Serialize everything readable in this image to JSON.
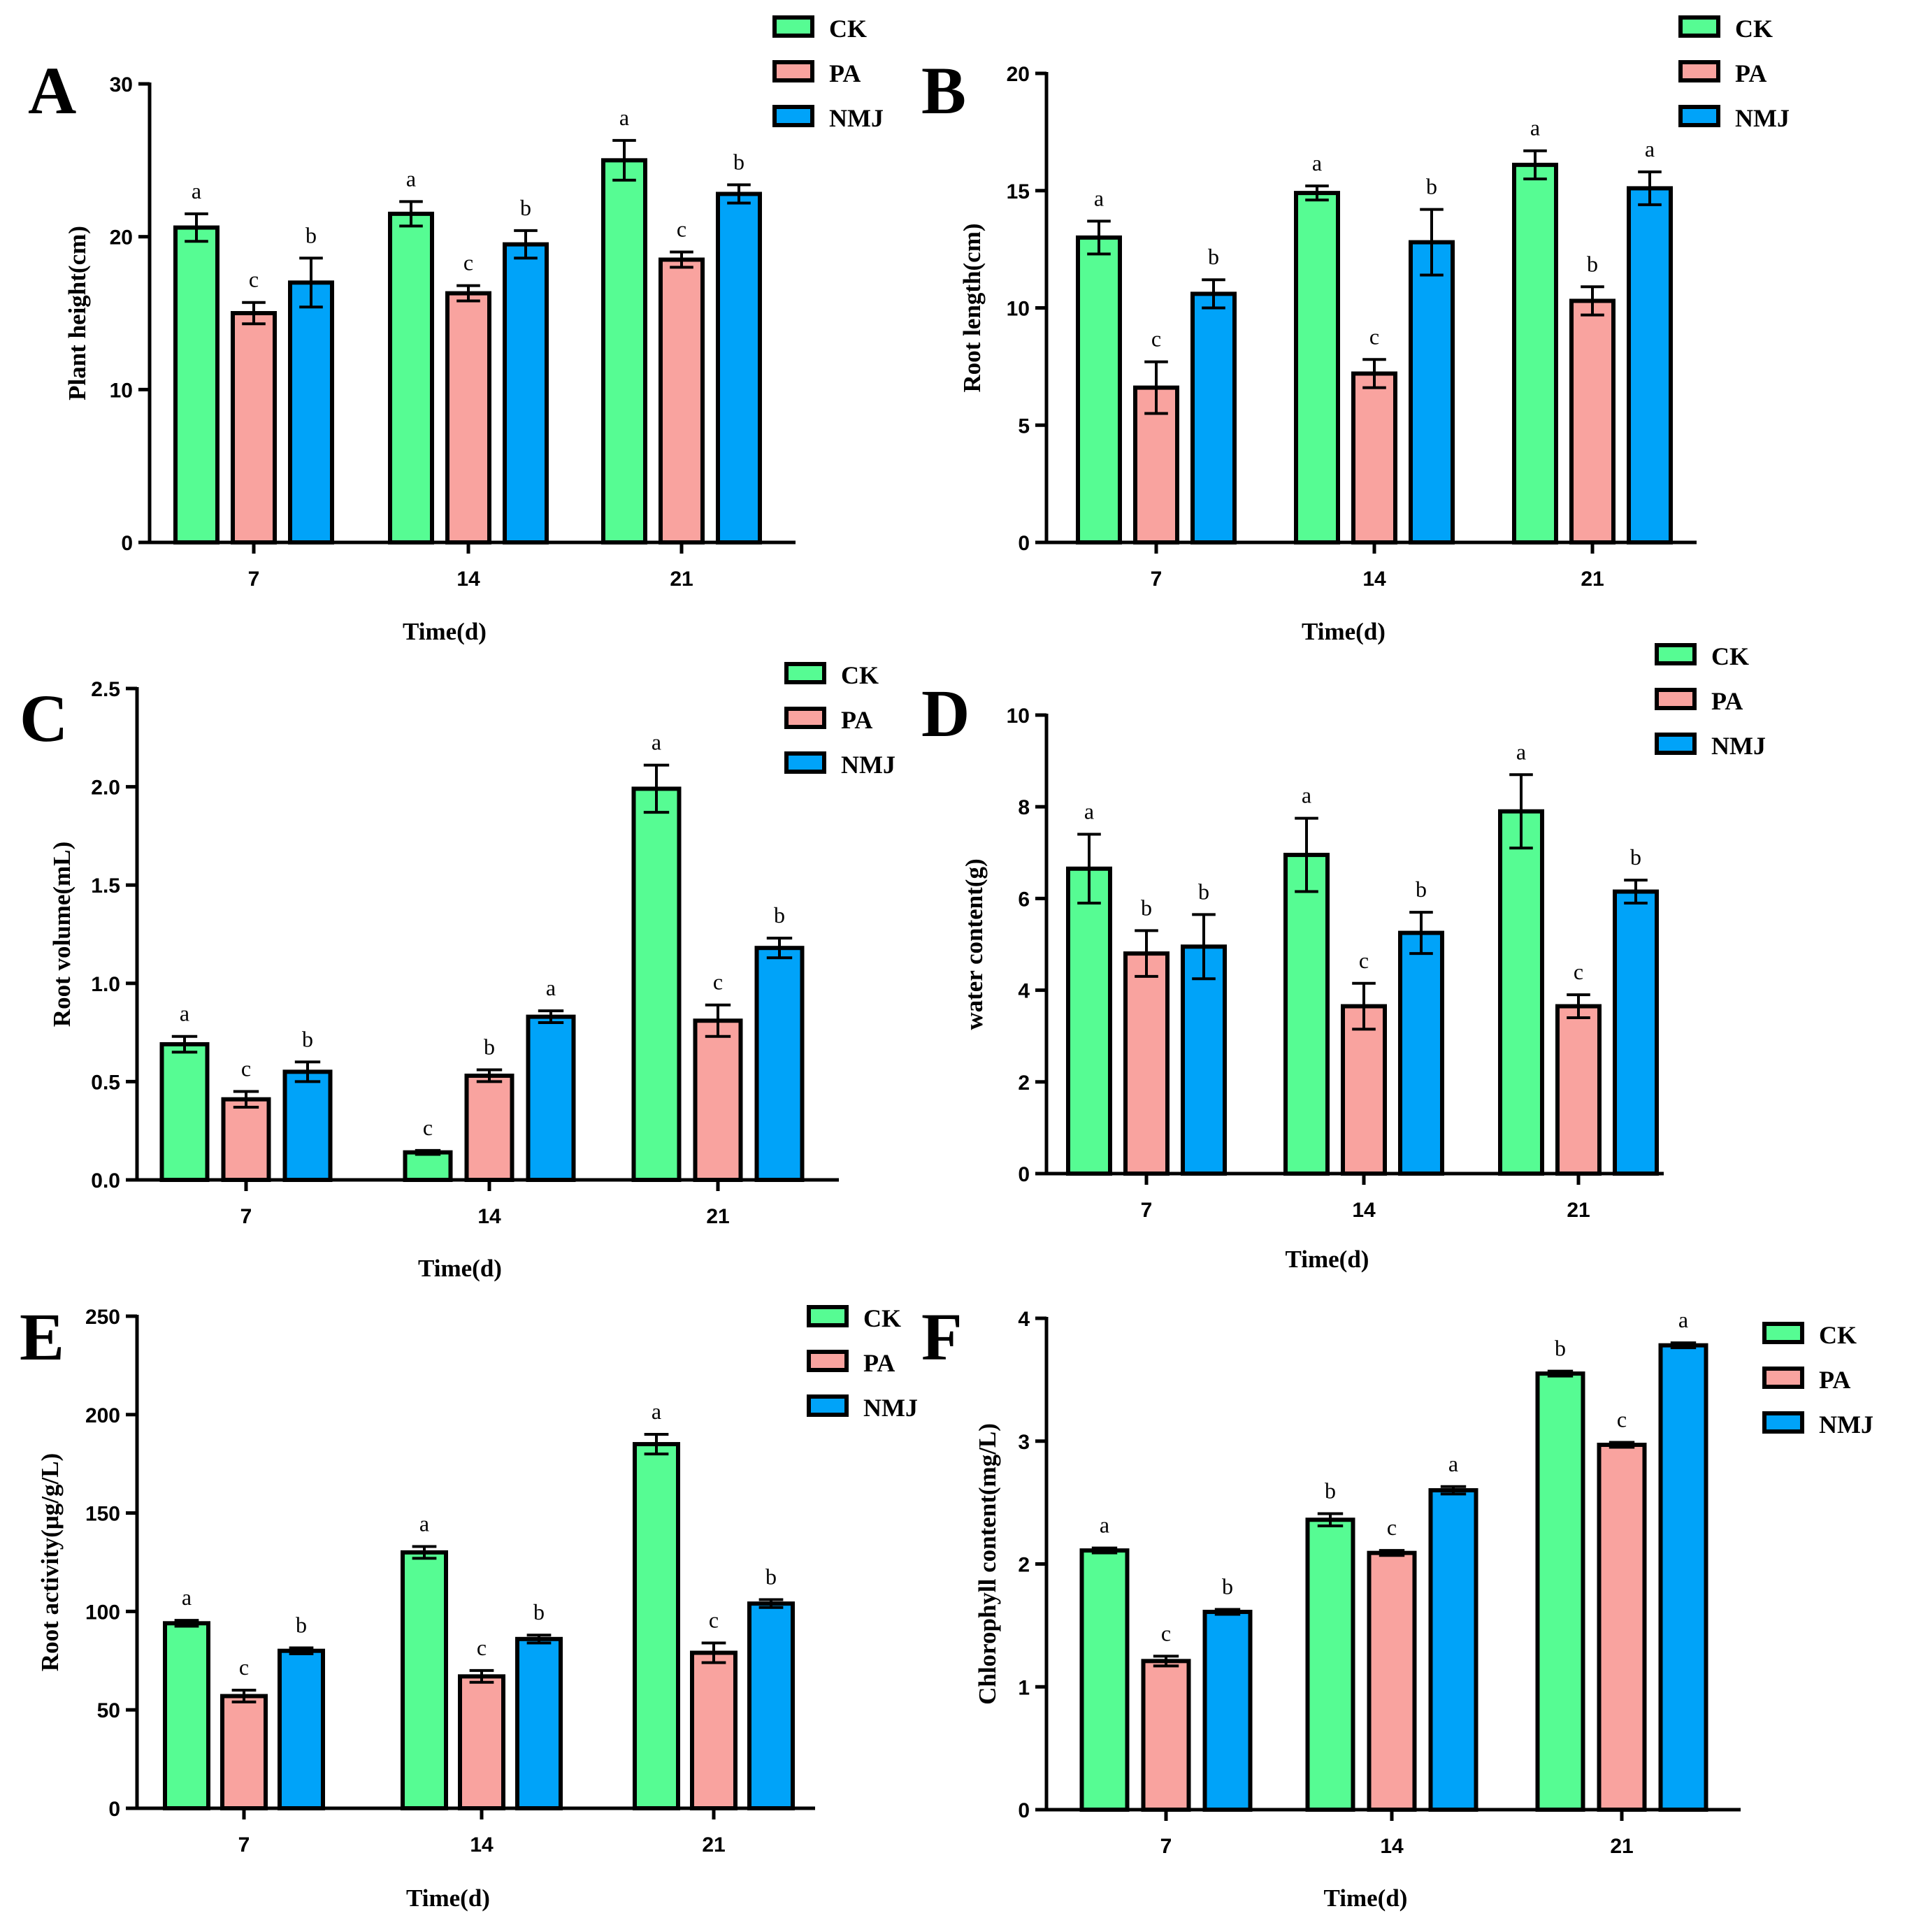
{
  "colors": {
    "CK": "#56fc93",
    "PA": "#f9a39f",
    "NMJ": "#00a3f9",
    "axis": "#000000"
  },
  "chart_data": [
    {
      "panel": "A",
      "type": "bar",
      "categories": [
        "7",
        "14",
        "21"
      ],
      "ylabel": "Plant height(cm)",
      "xlabel": "Time(d)",
      "ylim": [
        0,
        30
      ],
      "yticks": [
        0,
        10,
        20,
        30
      ],
      "ytick_labels": [
        "0",
        "10",
        "20",
        "30"
      ],
      "series": [
        {
          "name": "CK",
          "values": [
            20.6,
            21.5,
            25.0
          ],
          "errors": [
            0.9,
            0.8,
            1.3
          ],
          "letters": [
            "a",
            "a",
            "a"
          ]
        },
        {
          "name": "PA",
          "values": [
            15.0,
            16.3,
            18.5
          ],
          "errors": [
            0.7,
            0.5,
            0.5
          ],
          "letters": [
            "c",
            "c",
            "c"
          ]
        },
        {
          "name": "NMJ",
          "values": [
            17.0,
            19.5,
            22.8
          ],
          "errors": [
            1.6,
            0.9,
            0.6
          ],
          "letters": [
            "b",
            "b",
            "b"
          ]
        }
      ]
    },
    {
      "panel": "B",
      "type": "bar",
      "categories": [
        "7",
        "14",
        "21"
      ],
      "ylabel": "Root length(cm)",
      "xlabel": "Time(d)",
      "ylim": [
        0,
        20
      ],
      "yticks": [
        0,
        5,
        10,
        15,
        20
      ],
      "ytick_labels": [
        "0",
        "5",
        "10",
        "15",
        "20"
      ],
      "series": [
        {
          "name": "CK",
          "values": [
            13.0,
            14.9,
            16.1
          ],
          "errors": [
            0.7,
            0.3,
            0.6
          ],
          "letters": [
            "a",
            "a",
            "a"
          ]
        },
        {
          "name": "PA",
          "values": [
            6.6,
            7.2,
            10.3
          ],
          "errors": [
            1.1,
            0.6,
            0.6
          ],
          "letters": [
            "c",
            "c",
            "b"
          ]
        },
        {
          "name": "NMJ",
          "values": [
            10.6,
            12.8,
            15.1
          ],
          "errors": [
            0.6,
            1.4,
            0.7
          ],
          "letters": [
            "b",
            "b",
            "a"
          ]
        }
      ]
    },
    {
      "panel": "C",
      "type": "bar",
      "categories": [
        "7",
        "14",
        "21"
      ],
      "ylabel": "Root volume(mL)",
      "xlabel": "Time(d)",
      "ylim": [
        0,
        2.5
      ],
      "yticks": [
        0,
        0.5,
        1.0,
        1.5,
        2.0,
        2.5
      ],
      "ytick_labels": [
        "0.0",
        "0.5",
        "1.0",
        "1.5",
        "2.0",
        "2.5"
      ],
      "series": [
        {
          "name": "CK",
          "values": [
            0.69,
            0.14,
            1.99
          ],
          "errors": [
            0.04,
            0.01,
            0.12
          ],
          "letters": [
            "a",
            "c",
            "a"
          ]
        },
        {
          "name": "PA",
          "values": [
            0.41,
            0.53,
            0.81
          ],
          "errors": [
            0.04,
            0.03,
            0.08
          ],
          "letters": [
            "c",
            "b",
            "c"
          ]
        },
        {
          "name": "NMJ",
          "values": [
            0.55,
            0.83,
            1.18
          ],
          "errors": [
            0.05,
            0.03,
            0.05
          ],
          "letters": [
            "b",
            "a",
            "b"
          ]
        }
      ]
    },
    {
      "panel": "D",
      "type": "bar",
      "categories": [
        "7",
        "14",
        "21"
      ],
      "ylabel": "water content(g)",
      "xlabel": "Time(d)",
      "ylim": [
        0,
        10
      ],
      "yticks": [
        0,
        2,
        4,
        6,
        8,
        10
      ],
      "ytick_labels": [
        "0",
        "2",
        "4",
        "6",
        "8",
        "10"
      ],
      "series": [
        {
          "name": "CK",
          "values": [
            6.65,
            6.95,
            7.9
          ],
          "errors": [
            0.75,
            0.8,
            0.8
          ],
          "letters": [
            "a",
            "a",
            "a"
          ]
        },
        {
          "name": "PA",
          "values": [
            4.8,
            3.65,
            3.65
          ],
          "errors": [
            0.5,
            0.5,
            0.25
          ],
          "letters": [
            "b",
            "c",
            "c"
          ]
        },
        {
          "name": "NMJ",
          "values": [
            4.95,
            5.25,
            6.15
          ],
          "errors": [
            0.7,
            0.45,
            0.25
          ],
          "letters": [
            "b",
            "b",
            "b"
          ]
        }
      ]
    },
    {
      "panel": "E",
      "type": "bar",
      "categories": [
        "7",
        "14",
        "21"
      ],
      "ylabel": "Root activity(μg/g/L)",
      "xlabel": "Time(d)",
      "ylim": [
        0,
        250
      ],
      "yticks": [
        0,
        50,
        100,
        150,
        200,
        250
      ],
      "ytick_labels": [
        "0",
        "50",
        "100",
        "150",
        "200",
        "250"
      ],
      "series": [
        {
          "name": "CK",
          "values": [
            94,
            130,
            185
          ],
          "errors": [
            1.5,
            3,
            5
          ],
          "letters": [
            "a",
            "a",
            "a"
          ]
        },
        {
          "name": "PA",
          "values": [
            57,
            67,
            79
          ],
          "errors": [
            3,
            3,
            5
          ],
          "letters": [
            "c",
            "c",
            "c"
          ]
        },
        {
          "name": "NMJ",
          "values": [
            80,
            86,
            104
          ],
          "errors": [
            1.5,
            2,
            2
          ],
          "letters": [
            "b",
            "b",
            "b"
          ]
        }
      ]
    },
    {
      "panel": "F",
      "type": "bar",
      "categories": [
        "7",
        "14",
        "21"
      ],
      "ylabel": "Chlorophyll content(mg/L)",
      "xlabel": "Time(d)",
      "ylim": [
        0,
        4
      ],
      "yticks": [
        0,
        1,
        2,
        3,
        4
      ],
      "ytick_labels": [
        "0",
        "1",
        "2",
        "3",
        "4"
      ],
      "series": [
        {
          "name": "CK",
          "values": [
            2.11,
            2.36,
            3.55
          ],
          "errors": [
            0.02,
            0.05,
            0.02
          ],
          "letters": [
            "a",
            "b",
            "b"
          ]
        },
        {
          "name": "PA",
          "values": [
            1.21,
            2.09,
            2.97
          ],
          "errors": [
            0.04,
            0.02,
            0.02
          ],
          "letters": [
            "c",
            "c",
            "c"
          ]
        },
        {
          "name": "NMJ",
          "values": [
            1.61,
            2.6,
            3.78
          ],
          "errors": [
            0.02,
            0.03,
            0.02
          ],
          "letters": [
            "b",
            "a",
            "a"
          ]
        }
      ]
    }
  ]
}
